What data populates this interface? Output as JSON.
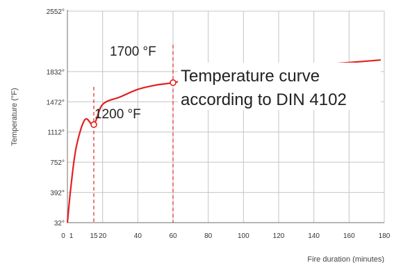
{
  "colors": {
    "curve": "#e2201f",
    "grid": "#c4c4c4",
    "axis": "#8a8a8a",
    "text": "#222222",
    "marker_fill": "#ffffff"
  },
  "chart_data": {
    "type": "line",
    "title": "",
    "xlabel": "Fire duration (minutes)",
    "ylabel": "Temperature (°F)",
    "xlim": [
      0,
      180
    ],
    "ylim": [
      32,
      2552
    ],
    "grid": true,
    "x_ticks": [
      0,
      1,
      15,
      20,
      40,
      60,
      80,
      100,
      120,
      140,
      160,
      180
    ],
    "x_tick_labels": [
      "0",
      "1",
      "15",
      "20",
      "40",
      "60",
      "80",
      "100",
      "120",
      "140",
      "160",
      "180"
    ],
    "y_ticks": [
      32,
      392,
      752,
      1112,
      1472,
      1832,
      2552
    ],
    "y_tick_labels": [
      "32°",
      "392°",
      "752°",
      "1112°",
      "1472°",
      "1832°",
      "2552°"
    ],
    "series": [
      {
        "name": "Temperature curve according to DIN 4102",
        "x": [
          0,
          2,
          5,
          10,
          15,
          20,
          30,
          40,
          50,
          60,
          80,
          100,
          120,
          140,
          160,
          178
        ],
        "y": [
          32,
          460,
          930,
          1260,
          1200,
          1440,
          1530,
          1620,
          1670,
          1700,
          1780,
          1840,
          1880,
          1910,
          1940,
          1970
        ]
      }
    ],
    "markers": [
      {
        "x": 15,
        "y": 1200,
        "label": "1200 °F"
      },
      {
        "x": 60,
        "y": 1700,
        "label": "1700 °F"
      }
    ],
    "annotation": "Temperature curve according to DIN 4102"
  }
}
